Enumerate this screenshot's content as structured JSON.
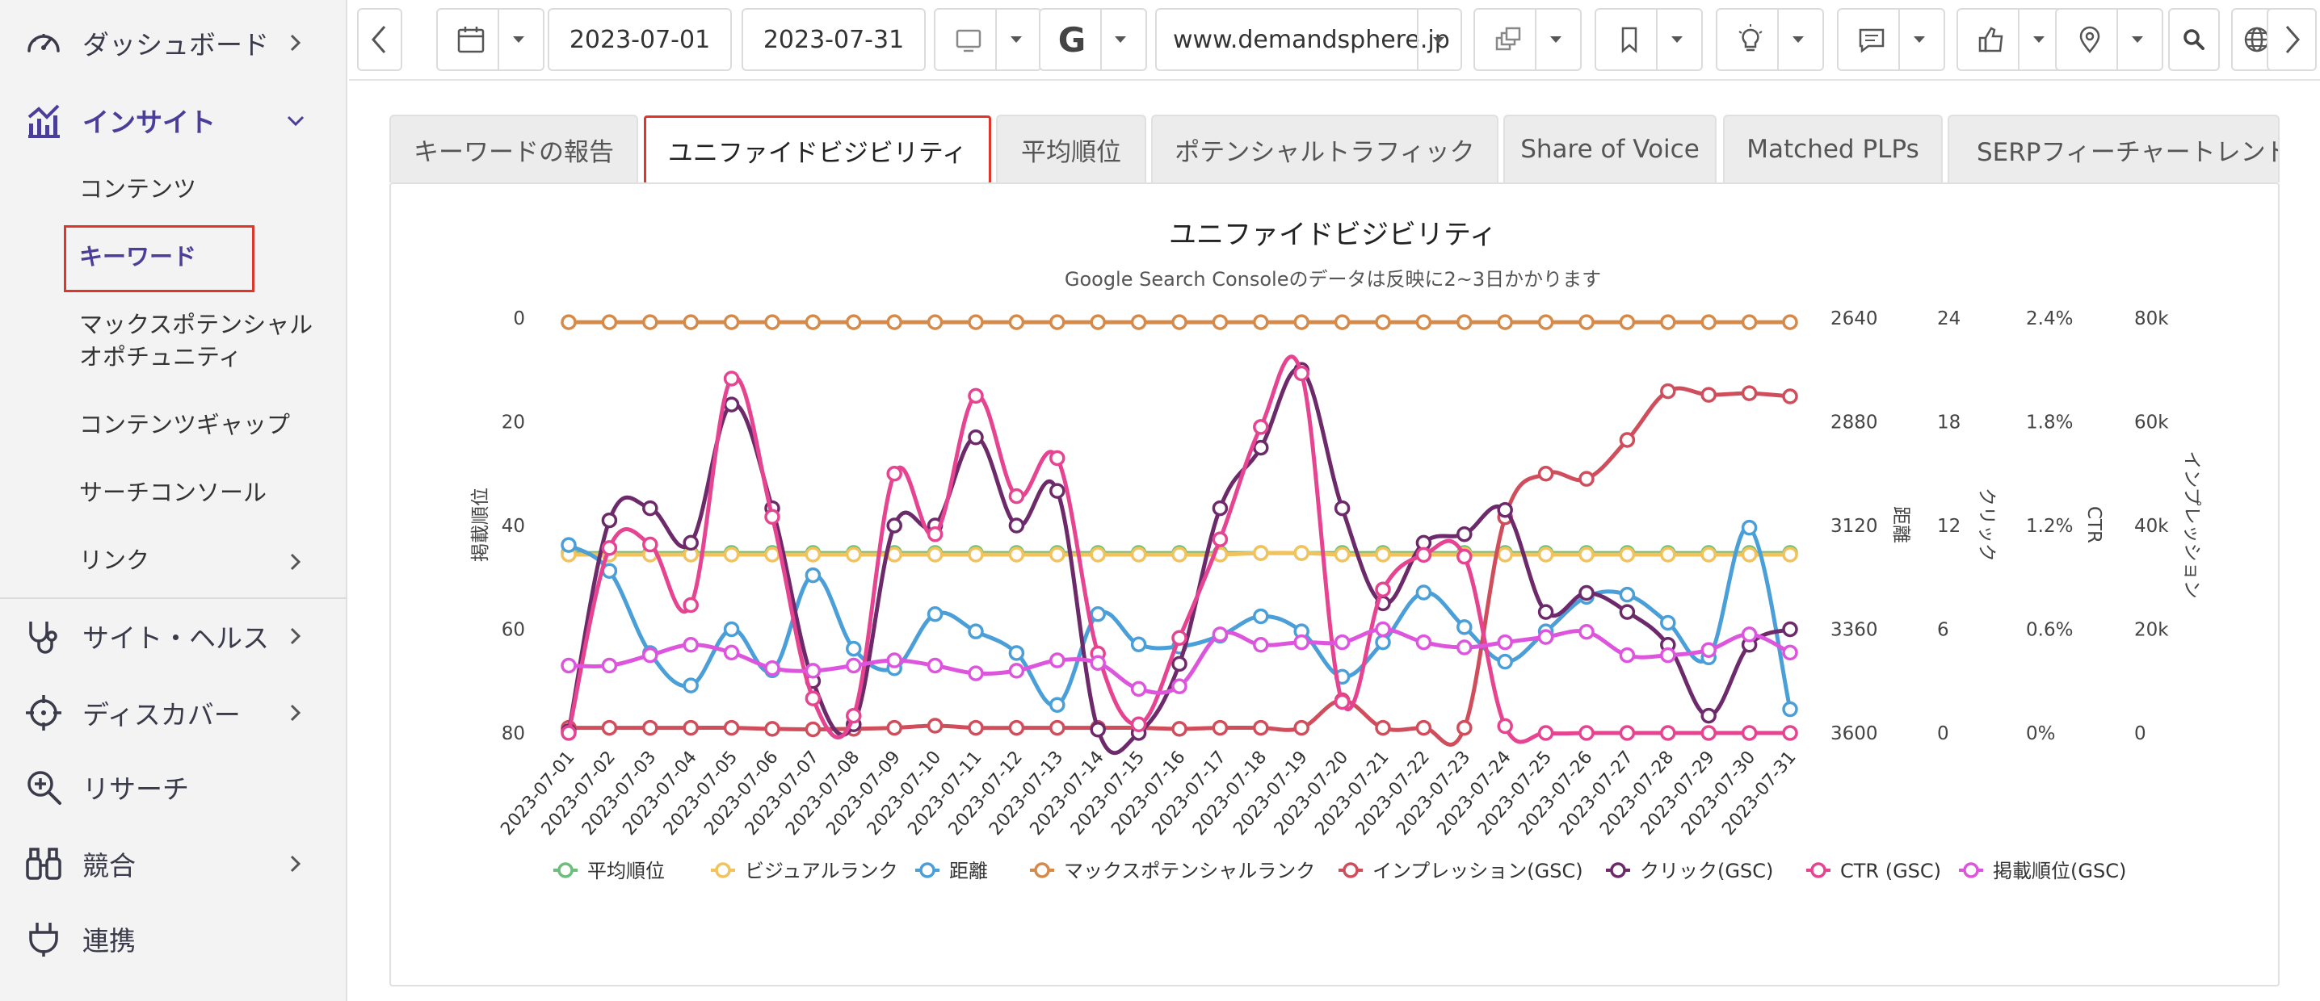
{
  "sidebar": {
    "items": [
      {
        "label": "ダッシュボード",
        "icon": "dashboard-gauge-icon",
        "active": false
      },
      {
        "label": "インサイト",
        "icon": "insights-chart-icon",
        "active": true
      },
      {
        "label": "サイト・ヘルス",
        "icon": "stethoscope-icon",
        "active": false
      },
      {
        "label": "ディスカバー",
        "icon": "crosshair-icon",
        "active": false
      },
      {
        "label": "リサーチ",
        "icon": "zoom-in-icon",
        "active": false
      },
      {
        "label": "競合",
        "icon": "binoculars-icon",
        "active": false
      },
      {
        "label": "連携",
        "icon": "plug-icon",
        "active": false
      }
    ],
    "sub_items": [
      {
        "label": "コンテンツ"
      },
      {
        "label": "キーワード",
        "active": true
      },
      {
        "label": "マックスポテンシャル"
      },
      {
        "label": "オポチュニティ"
      },
      {
        "label": "コンテンツギャップ"
      },
      {
        "label": "サーチコンソール"
      },
      {
        "label": "リンク"
      }
    ],
    "accent_color": "#4b3d9a"
  },
  "toolbar": {
    "start_date": "2023-07-01",
    "end_date": "2023-07-31",
    "search_engine": "G",
    "domain": "www.demandsphere.jp"
  },
  "tabs": [
    {
      "label": "キーワードの報告"
    },
    {
      "label": "ユニファイドビジビリティ",
      "active": true
    },
    {
      "label": "平均順位"
    },
    {
      "label": "ポテンシャルトラフィック"
    },
    {
      "label": "Share of Voice"
    },
    {
      "label": "Matched PLPs"
    },
    {
      "label": "SERPフィーチャートレンド"
    }
  ],
  "chart_data": {
    "type": "line",
    "title": "ユニファイドビジビリティ",
    "subtitle": "Google Search Consoleのデータは反映に2~3日かかります",
    "x": [
      "2023-07-01",
      "2023-07-02",
      "2023-07-03",
      "2023-07-04",
      "2023-07-05",
      "2023-07-06",
      "2023-07-07",
      "2023-07-08",
      "2023-07-09",
      "2023-07-10",
      "2023-07-11",
      "2023-07-12",
      "2023-07-13",
      "2023-07-14",
      "2023-07-15",
      "2023-07-16",
      "2023-07-17",
      "2023-07-18",
      "2023-07-19",
      "2023-07-20",
      "2023-07-21",
      "2023-07-22",
      "2023-07-23",
      "2023-07-24",
      "2023-07-25",
      "2023-07-26",
      "2023-07-27",
      "2023-07-28",
      "2023-07-29",
      "2023-07-30",
      "2023-07-31"
    ],
    "axes": [
      {
        "id": "rank",
        "label": "掲載順位",
        "position": "left",
        "min": 0,
        "max": 80,
        "reversed": true,
        "ticks": [
          "0",
          "20",
          "40",
          "60",
          "80"
        ]
      },
      {
        "id": "distance",
        "label": "距離",
        "position": "right",
        "min": 2640,
        "max": 3600,
        "reversed": true,
        "ticks": [
          "2640",
          "2880",
          "3120",
          "3360",
          "3600"
        ]
      },
      {
        "id": "clicks",
        "label": "クリック",
        "position": "right",
        "min": 0,
        "max": 24,
        "ticks": [
          "24",
          "18",
          "12",
          "6",
          "0"
        ]
      },
      {
        "id": "ctr",
        "label": "CTR",
        "position": "right",
        "min": 0,
        "max": 2.4,
        "ticks": [
          "2.4%",
          "1.8%",
          "1.2%",
          "0.6%",
          "0%"
        ]
      },
      {
        "id": "impressions",
        "label": "インプレッション",
        "position": "right",
        "min": 0,
        "max": 80000,
        "ticks": [
          "80k",
          "60k",
          "40k",
          "20k",
          "0"
        ]
      }
    ],
    "series": [
      {
        "name": "平均順位",
        "color": "#6abf7b",
        "axis": "rank",
        "values": [
          45.3,
          45.3,
          45.3,
          45.3,
          45.3,
          45.3,
          45.3,
          45.3,
          45.3,
          45.3,
          45.3,
          45.3,
          45.3,
          45.3,
          45.3,
          45.3,
          45.3,
          45.3,
          45.3,
          45.3,
          45.3,
          45.3,
          45.3,
          45.3,
          45.3,
          45.3,
          45.3,
          45.3,
          45.3,
          45.3,
          45.3
        ]
      },
      {
        "name": "ビジュアルランク",
        "color": "#f2c25c",
        "axis": "rank",
        "values": [
          45.6,
          45.6,
          45.6,
          45.6,
          45.6,
          45.6,
          45.6,
          45.6,
          45.6,
          45.6,
          45.6,
          45.6,
          45.6,
          45.6,
          45.6,
          45.6,
          45.6,
          45.3,
          45.3,
          45.6,
          45.6,
          45.6,
          45.6,
          45.6,
          45.6,
          45.6,
          45.6,
          45.6,
          45.6,
          45.6,
          45.6
        ]
      },
      {
        "name": "距離",
        "color": "#4a9fd8",
        "axis": "distance",
        "values": [
          3165,
          3225,
          3415,
          3490,
          3360,
          3455,
          3235,
          3405,
          3450,
          3325,
          3365,
          3415,
          3535,
          3325,
          3395,
          3400,
          3375,
          3330,
          3365,
          3470,
          3390,
          3275,
          3355,
          3435,
          3365,
          3285,
          3280,
          3345,
          3425,
          3125,
          3545
        ]
      },
      {
        "name": "マックスポテンシャルランク",
        "color": "#d68a4a",
        "axis": "rank",
        "values": [
          0.8,
          0.8,
          0.8,
          0.8,
          0.8,
          0.8,
          0.8,
          0.8,
          0.8,
          0.8,
          0.8,
          0.8,
          0.8,
          0.8,
          0.8,
          0.8,
          0.8,
          0.8,
          0.8,
          0.8,
          0.8,
          0.8,
          0.8,
          0.8,
          0.8,
          0.8,
          0.8,
          0.8,
          0.8,
          0.8,
          0.8
        ]
      },
      {
        "name": "インプレッション(GSC)",
        "color": "#d04d5c",
        "axis": "impressions",
        "values": [
          1000,
          1000,
          1000,
          1000,
          1000,
          800,
          700,
          800,
          1000,
          1400,
          1000,
          1000,
          1000,
          1000,
          1000,
          800,
          1000,
          1000,
          1000,
          6300,
          1000,
          1000,
          1000,
          41600,
          50000,
          49000,
          56500,
          65900,
          65200,
          65500,
          64900
        ]
      },
      {
        "name": "クリック(GSC)",
        "color": "#6d2a6b",
        "axis": "clicks",
        "values": [
          0.1,
          12.3,
          13.0,
          11.0,
          19.0,
          13.0,
          3.0,
          0.5,
          12.0,
          12.0,
          17.1,
          12.0,
          14.0,
          0.2,
          0.0,
          4.0,
          13.0,
          16.5,
          21.0,
          13.0,
          7.5,
          11.0,
          11.5,
          12.9,
          7.0,
          8.1,
          7.0,
          5.1,
          1.0,
          5.1,
          6.0
        ]
      },
      {
        "name": "CTR (GSC)",
        "color": "#e64391",
        "axis": "ctr",
        "values": [
          0.0,
          1.07,
          1.09,
          0.74,
          2.05,
          1.25,
          0.2,
          0.1,
          1.5,
          1.15,
          1.95,
          1.37,
          1.59,
          0.46,
          0.05,
          0.55,
          1.12,
          1.77,
          2.08,
          0.18,
          0.83,
          1.03,
          1.02,
          0.04,
          0.0,
          0.0,
          0.0,
          0.0,
          0.0,
          0.0,
          0.0
        ]
      },
      {
        "name": "掲載順位(GSC)",
        "color": "#dd55dd",
        "axis": "rank",
        "values": [
          67,
          67,
          65,
          63,
          64.5,
          67.5,
          68,
          67,
          66,
          67,
          68.5,
          68,
          66,
          66.5,
          71.5,
          71,
          61,
          63,
          62.5,
          62.5,
          60,
          62.5,
          63.5,
          62.5,
          61.5,
          60.5,
          65,
          65,
          64,
          61,
          64.5
        ]
      }
    ],
    "legend_position": "bottom",
    "grid": false
  }
}
